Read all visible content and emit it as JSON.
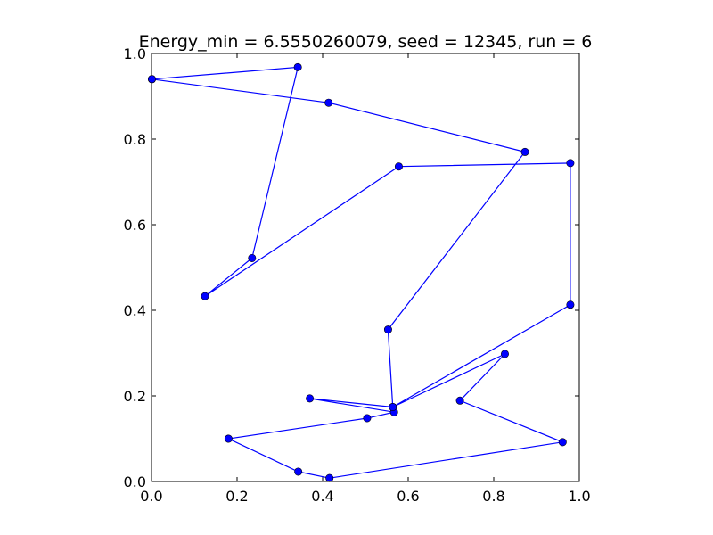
{
  "chart_data": {
    "type": "line",
    "title": "Energy_min = 6.5550260079, seed = 12345, run = 6",
    "xlabel": "",
    "ylabel": "",
    "xlim": [
      0.0,
      1.0
    ],
    "ylim": [
      0.0,
      1.0
    ],
    "x_ticks": [
      "0.0",
      "0.2",
      "0.4",
      "0.6",
      "0.8",
      "1.0"
    ],
    "y_ticks": [
      "0.0",
      "0.2",
      "0.4",
      "0.6",
      "0.8",
      "1.0"
    ],
    "grid": false,
    "legend": "none",
    "series": [
      {
        "color": "#0000ff",
        "marker": "circle",
        "points": [
          {
            "x": 0.001,
            "y": 0.94
          },
          {
            "x": 0.342,
            "y": 0.968
          },
          {
            "x": 0.235,
            "y": 0.522
          },
          {
            "x": 0.125,
            "y": 0.433
          },
          {
            "x": 0.578,
            "y": 0.736
          },
          {
            "x": 0.979,
            "y": 0.744
          },
          {
            "x": 0.979,
            "y": 0.413
          },
          {
            "x": 0.564,
            "y": 0.174
          },
          {
            "x": 0.37,
            "y": 0.194
          },
          {
            "x": 0.567,
            "y": 0.162
          },
          {
            "x": 0.504,
            "y": 0.148
          },
          {
            "x": 0.18,
            "y": 0.1
          },
          {
            "x": 0.343,
            "y": 0.023
          },
          {
            "x": 0.416,
            "y": 0.008
          },
          {
            "x": 0.961,
            "y": 0.092
          },
          {
            "x": 0.721,
            "y": 0.189
          },
          {
            "x": 0.826,
            "y": 0.298
          },
          {
            "x": 0.564,
            "y": 0.174
          },
          {
            "x": 0.553,
            "y": 0.355
          },
          {
            "x": 0.873,
            "y": 0.77
          },
          {
            "x": 0.414,
            "y": 0.885
          },
          {
            "x": 0.001,
            "y": 0.94
          }
        ]
      }
    ]
  }
}
